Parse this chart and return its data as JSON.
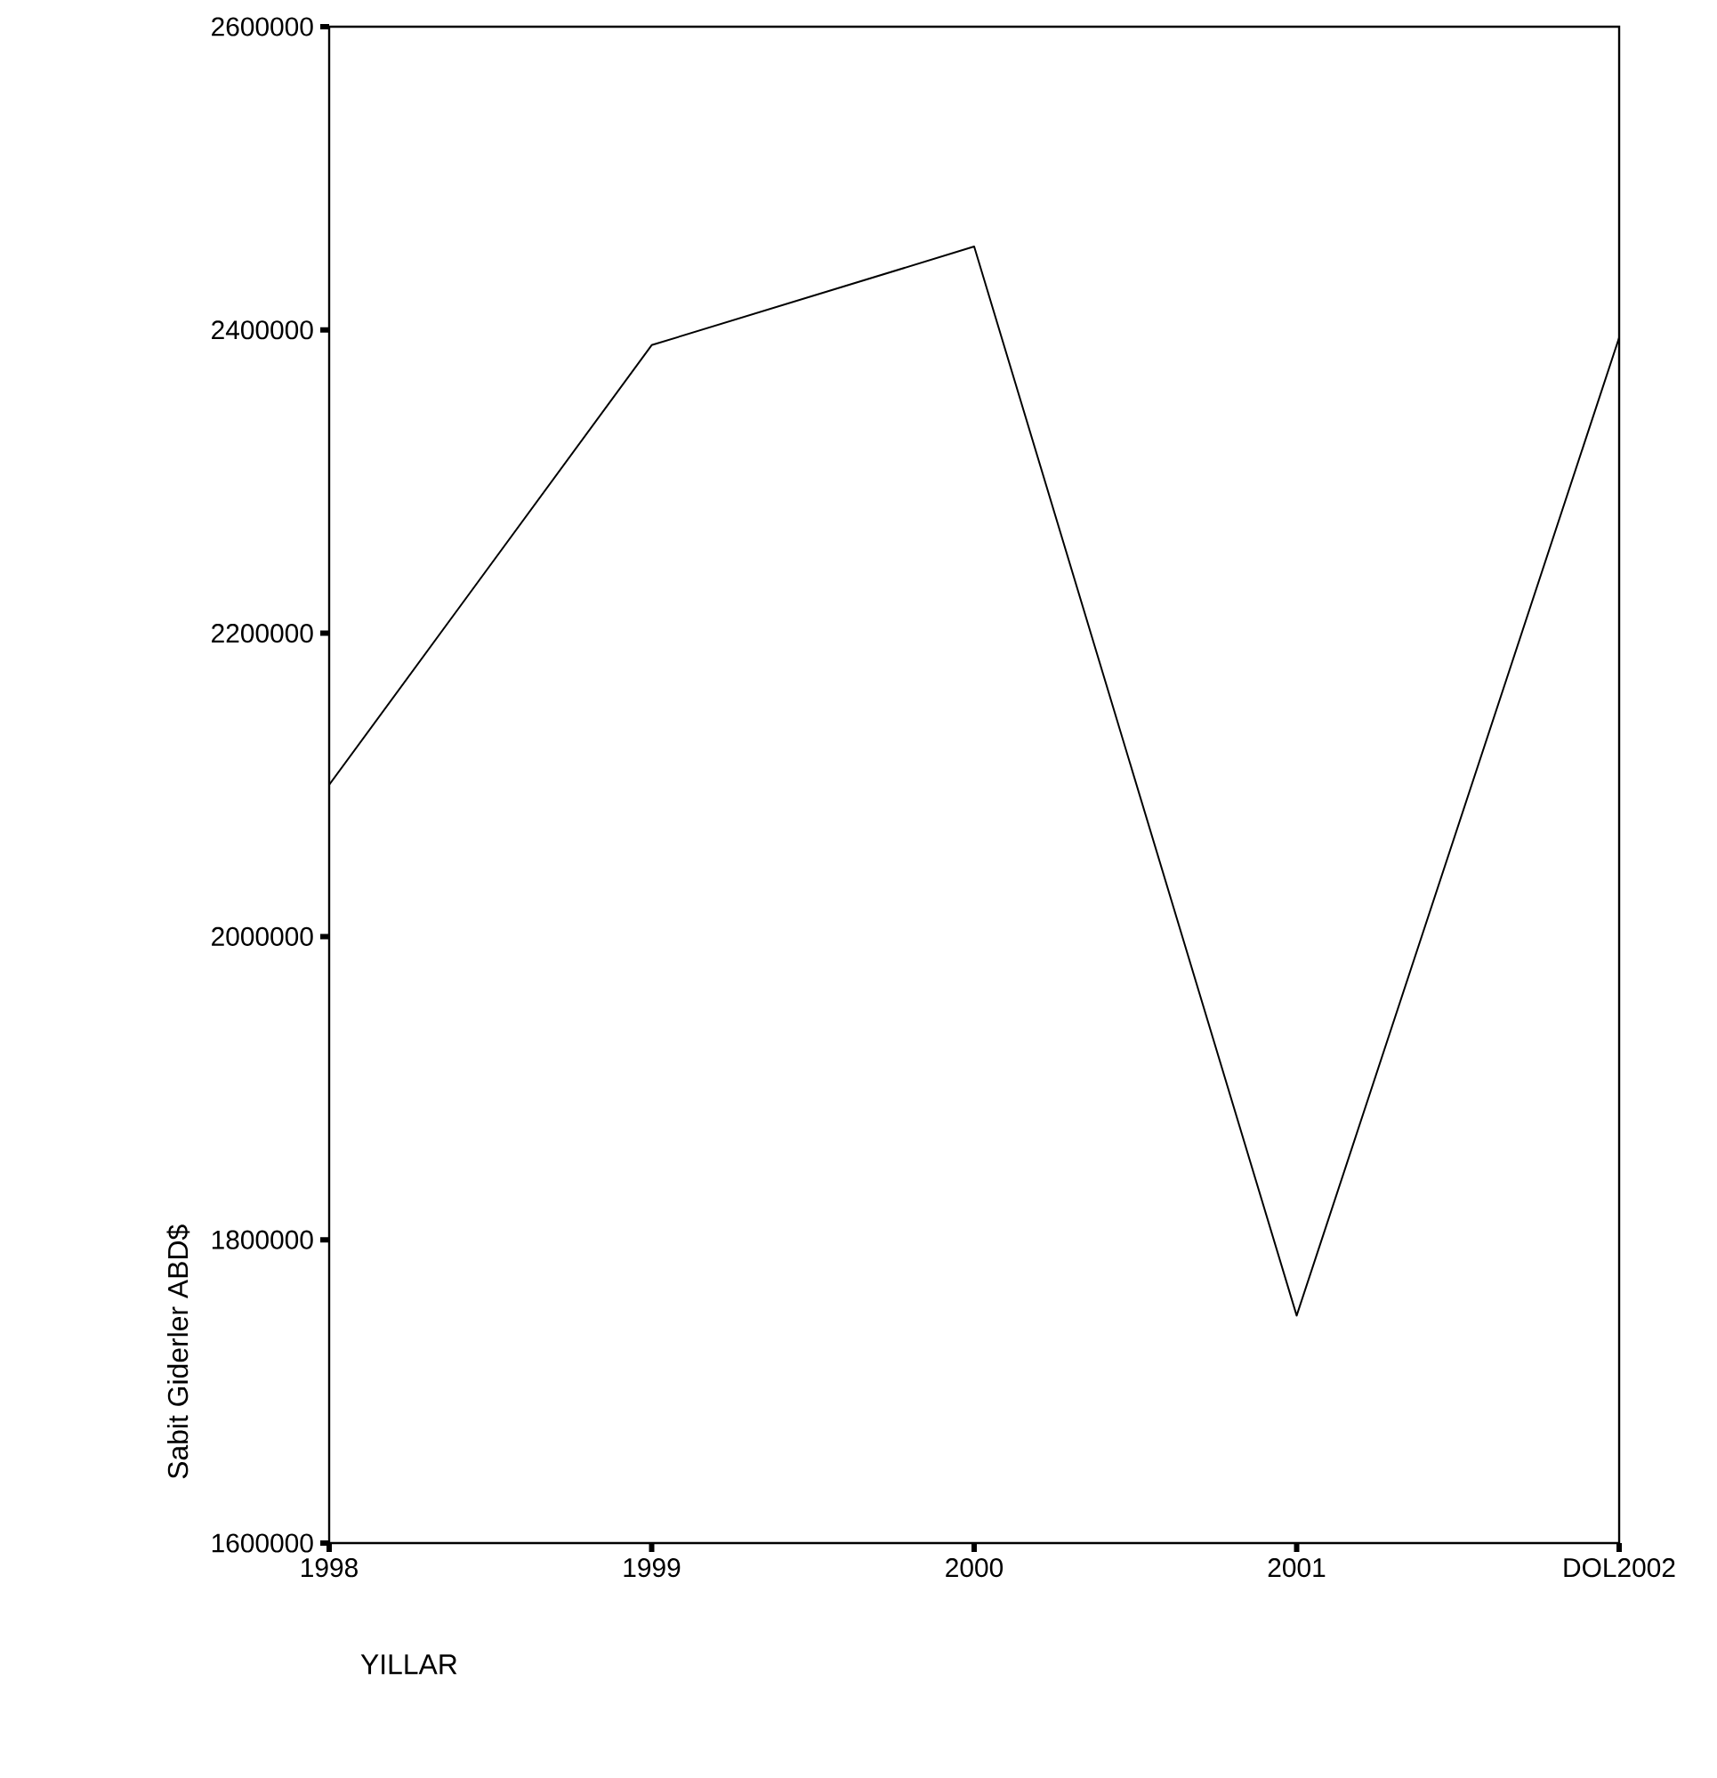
{
  "chart_data": {
    "type": "line",
    "xlabel": "YILLAR",
    "ylabel": "Sabit Giderler ABD$",
    "categories": [
      "1998",
      "1999",
      "2000",
      "2001",
      "DOL2002"
    ],
    "series": [
      {
        "color": "#000000",
        "values": [
          2100000,
          2390000,
          2455000,
          1750000,
          2395000
        ]
      }
    ],
    "ylim": [
      1600000,
      2600000
    ],
    "yticks": [
      1600000,
      1800000,
      2000000,
      2200000,
      2400000,
      2600000
    ],
    "line_style": "solid"
  }
}
